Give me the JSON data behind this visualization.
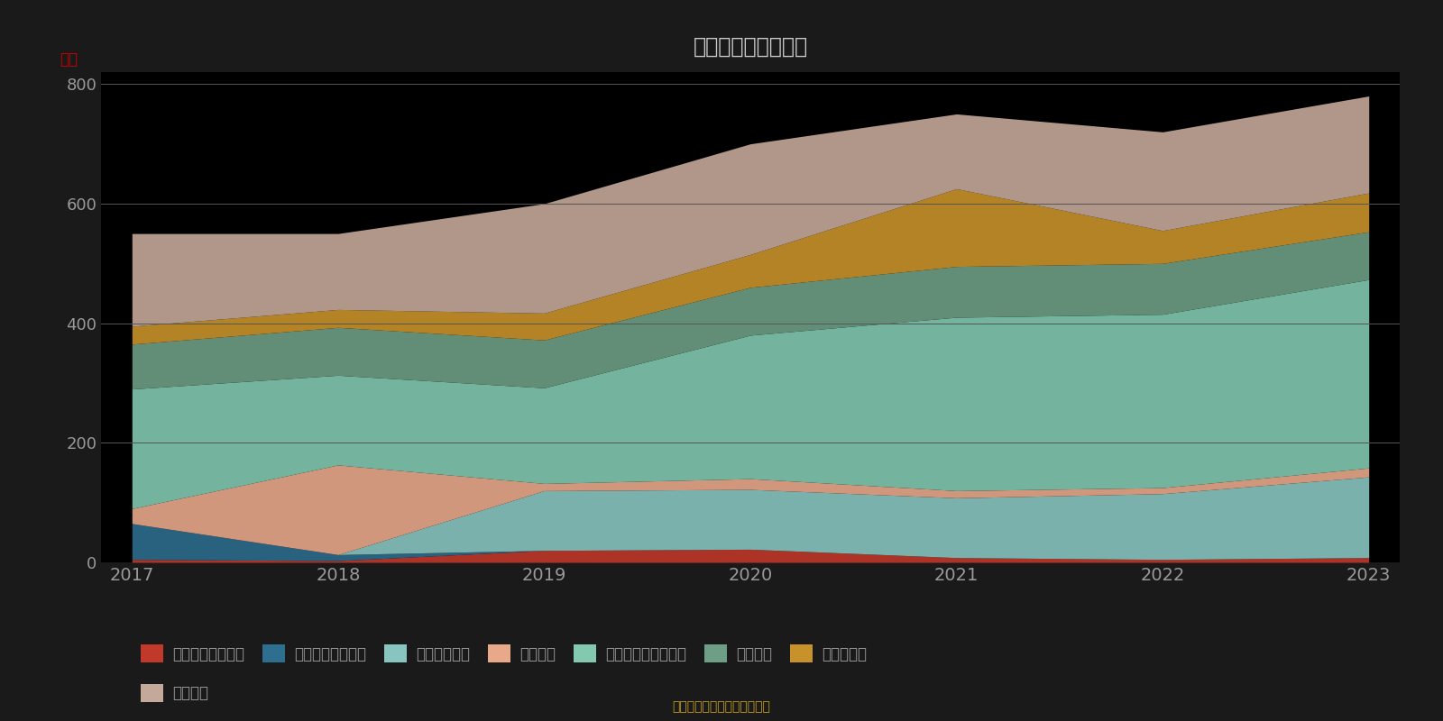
{
  "title": "历年主要资产堆积图",
  "ylabel": "亿元",
  "source": "制图数据来自恒生聚源数据库",
  "years": [
    2017,
    2018,
    2019,
    2020,
    2021,
    2022,
    2023
  ],
  "series": [
    {
      "name": "其他权益工具投资",
      "color": "#c0392b",
      "values": [
        5,
        3,
        20,
        22,
        8,
        5,
        8
      ]
    },
    {
      "name": "可供出售金融资产",
      "color": "#2e6e8e",
      "values": [
        60,
        10,
        0,
        0,
        0,
        0,
        0
      ]
    },
    {
      "name": "其他债权投资",
      "color": "#88c5c0",
      "values": [
        0,
        0,
        100,
        100,
        100,
        110,
        135
      ]
    },
    {
      "name": "债权投资",
      "color": "#e8a98a",
      "values": [
        25,
        150,
        12,
        18,
        12,
        10,
        15
      ]
    },
    {
      "name": "交易性金融资产合计",
      "color": "#82c9b0",
      "values": [
        200,
        150,
        160,
        240,
        290,
        290,
        315
      ]
    },
    {
      "name": "融出资金",
      "color": "#6e9e85",
      "values": [
        75,
        80,
        80,
        80,
        85,
        85,
        80
      ]
    },
    {
      "name": "结算备付金",
      "color": "#c8922a",
      "values": [
        30,
        30,
        45,
        55,
        130,
        55,
        65
      ]
    },
    {
      "name": "货币资金",
      "color": "#c4a99a",
      "values": [
        155,
        127,
        183,
        185,
        125,
        165,
        162
      ]
    }
  ],
  "ylim": [
    0,
    820
  ],
  "yticks": [
    0,
    200,
    400,
    600,
    800
  ],
  "plot_bg_color": "#000000",
  "fig_bg_color": "#1a1a1a",
  "text_color": "#999999",
  "grid_color": "#555555",
  "title_color": "#cccccc",
  "ylabel_color": "#cc0000",
  "source_color": "#c8a020",
  "legend_ncol_row1": 7,
  "legend_ncol_row2": 1
}
